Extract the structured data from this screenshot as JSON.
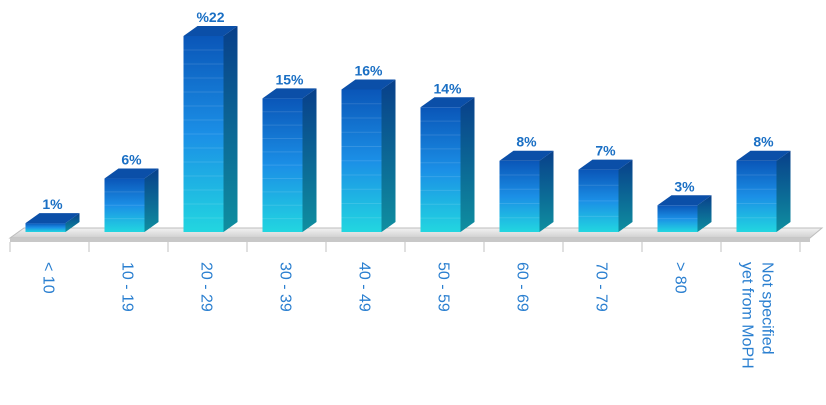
{
  "chart_data": {
    "type": "bar",
    "categories": [
      "< 10",
      "10 - 19",
      "20 - 29",
      "30 - 39",
      "40 - 49",
      "50 - 59",
      "60 - 69",
      "70 - 79",
      "> 80",
      "Not specified yet from MoPH"
    ],
    "category_lines": [
      [
        "< 10"
      ],
      [
        "10 - 19"
      ],
      [
        "20 - 29"
      ],
      [
        "30 - 39"
      ],
      [
        "40 - 49"
      ],
      [
        "50 - 59"
      ],
      [
        "60 - 69"
      ],
      [
        "70 - 79"
      ],
      [
        "> 80"
      ],
      [
        "Not specified",
        "yet from MoPH"
      ]
    ],
    "values": [
      1,
      6,
      22,
      15,
      16,
      14,
      8,
      7,
      3,
      8
    ],
    "data_labels": [
      "1%",
      "6%",
      "%22",
      "15%",
      "16%",
      "14%",
      "8%",
      "7%",
      "3%",
      "8%"
    ],
    "ylim": [
      0,
      22
    ],
    "grid": false,
    "legend": "none",
    "colors": {
      "bar_top": "#0a56b8",
      "bar_mid": "#1b8fe6",
      "bar_bottom": "#22d6e0",
      "side": "#0a4a9a",
      "label": "#1a6fc4",
      "floor": "#d9d9d9"
    }
  }
}
